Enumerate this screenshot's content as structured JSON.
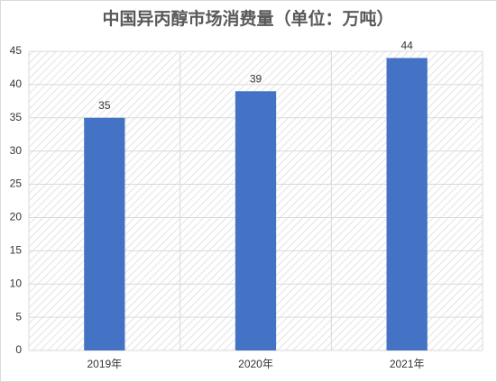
{
  "chart_data": {
    "type": "bar",
    "title": "中国异丙醇市场消费量（单位：万吨）",
    "categories": [
      "2019年",
      "2020年",
      "2021年"
    ],
    "values": [
      35,
      39,
      44
    ],
    "color": "#4472c4",
    "ylim": [
      0,
      45
    ],
    "yticks": [
      0,
      5,
      10,
      15,
      20,
      25,
      30,
      35,
      40,
      45
    ],
    "grid": true
  }
}
